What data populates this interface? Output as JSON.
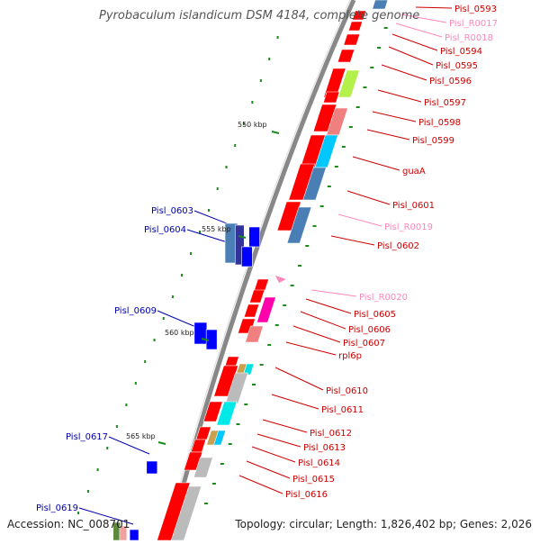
{
  "title": "Pyrobaculum islandicum DSM 4184, complete genome",
  "accession": "Accession: NC_008701",
  "topology": "Topology: circular; Length: 1,826,402 bp; Genes: 2,026",
  "colors": {
    "forward_cds": "#ff0000",
    "reverse_cds": "#0000ff",
    "rna": "#ff88bb",
    "label_forward": "#cc0000",
    "label_reverse": "#0000aa",
    "label_rna": "#ff88bb",
    "backbone": "#888888",
    "ticks": "#1a8a1a"
  },
  "kbp_ticks": [
    "550 kbp",
    "555 kbp",
    "560 kbp",
    "565 kbp"
  ],
  "right_labels": [
    {
      "text": "Pisl_0593",
      "kind": "forward"
    },
    {
      "text": "Pisl_R0017",
      "kind": "rna"
    },
    {
      "text": "Pisl_R0018",
      "kind": "rna"
    },
    {
      "text": "Pisl_0594",
      "kind": "forward"
    },
    {
      "text": "Pisl_0595",
      "kind": "forward"
    },
    {
      "text": "Pisl_0596",
      "kind": "forward"
    },
    {
      "text": "Pisl_0597",
      "kind": "forward"
    },
    {
      "text": "Pisl_0598",
      "kind": "forward"
    },
    {
      "text": "Pisl_0599",
      "kind": "forward"
    },
    {
      "text": "guaA",
      "kind": "forward"
    },
    {
      "text": "Pisl_0601",
      "kind": "forward"
    },
    {
      "text": "Pisl_R0019",
      "kind": "rna"
    },
    {
      "text": "Pisl_0602",
      "kind": "forward"
    },
    {
      "text": "Pisl_R0020",
      "kind": "rna"
    },
    {
      "text": "Pisl_0605",
      "kind": "forward"
    },
    {
      "text": "Pisl_0606",
      "kind": "forward"
    },
    {
      "text": "Pisl_0607",
      "kind": "forward"
    },
    {
      "text": "rpl6p",
      "kind": "forward"
    },
    {
      "text": "Pisl_0610",
      "kind": "forward"
    },
    {
      "text": "Pisl_0611",
      "kind": "forward"
    },
    {
      "text": "Pisl_0612",
      "kind": "forward"
    },
    {
      "text": "Pisl_0613",
      "kind": "forward"
    },
    {
      "text": "Pisl_0614",
      "kind": "forward"
    },
    {
      "text": "Pisl_0615",
      "kind": "forward"
    },
    {
      "text": "Pisl_0616",
      "kind": "forward"
    }
  ],
  "left_labels": [
    {
      "text": "Pisl_0603",
      "kind": "reverse"
    },
    {
      "text": "Pisl_0604",
      "kind": "reverse"
    },
    {
      "text": "Pisl_0609",
      "kind": "reverse"
    },
    {
      "text": "Pisl_0617",
      "kind": "reverse"
    },
    {
      "text": "Pisl_0619",
      "kind": "reverse"
    }
  ]
}
